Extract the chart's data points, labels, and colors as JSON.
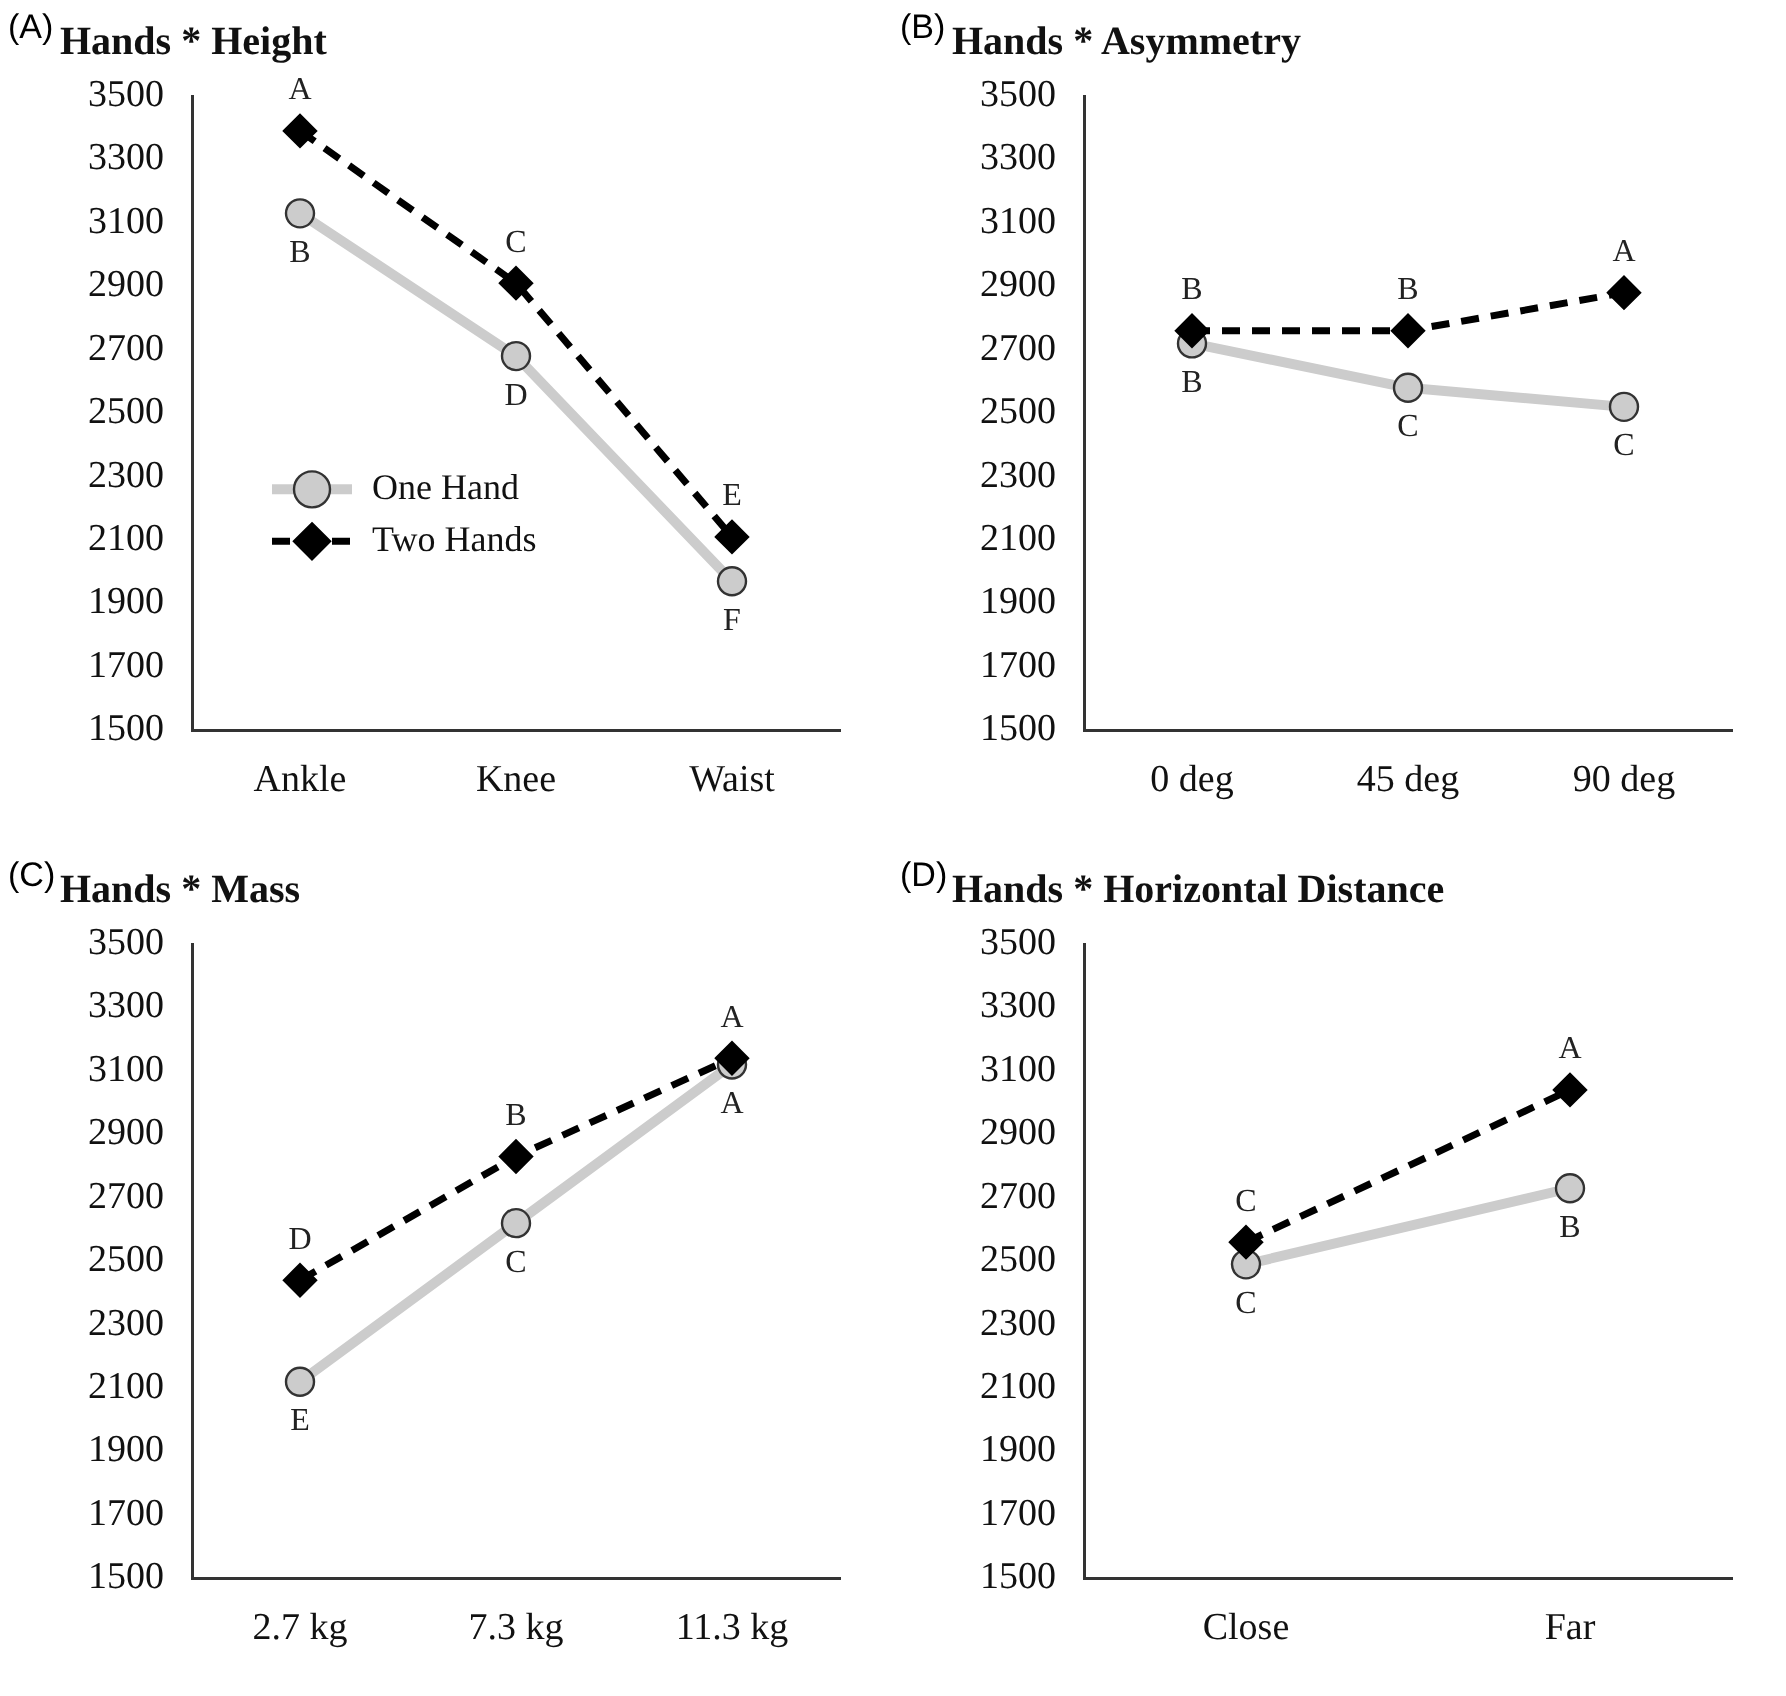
{
  "chart_data": [
    {
      "type": "line",
      "title": "Hands * Height",
      "categories": [
        "Ankle",
        "Knee",
        "Waist"
      ],
      "ylim": [
        1500,
        3500
      ],
      "yticks": [
        1500,
        1700,
        1900,
        2100,
        2300,
        2500,
        2700,
        2900,
        3100,
        3300,
        3500
      ],
      "grid": false,
      "legend": "bottom left",
      "series": [
        {
          "name": "One Hand",
          "color": "#cccccc",
          "marker": "circle",
          "line_style": "solid",
          "values": [
            3130,
            2680,
            1970
          ]
        },
        {
          "name": "Two Hands",
          "color": "#000000",
          "marker": "diamond",
          "line_style": "dashed",
          "values": [
            3390,
            2910,
            2110
          ]
        }
      ],
      "annotations": [
        "(A)",
        {
          "text": "A",
          "x": "Ankle",
          "y": 3390
        },
        {
          "text": "C",
          "x": "Knee",
          "y": 2910
        },
        {
          "text": "E",
          "x": "Waist",
          "y": 2110
        },
        {
          "text": "B",
          "x": "Ankle",
          "y": 3130
        },
        {
          "text": "D",
          "x": "Knee",
          "y": 2680
        },
        {
          "text": "F",
          "x": "Waist",
          "y": 1970
        }
      ]
    },
    {
      "type": "line",
      "title": "Hands * Asymmetry",
      "categories": [
        "0 deg",
        "45 deg",
        "90 deg"
      ],
      "ylim": [
        1500,
        3500
      ],
      "yticks": [
        1500,
        1700,
        1900,
        2100,
        2300,
        2500,
        2700,
        2900,
        3100,
        3300,
        3500
      ],
      "grid": false,
      "legend": false,
      "series": [
        {
          "color": "#cccccc",
          "marker": "circle",
          "line_style": "solid",
          "values": [
            2720,
            2580,
            2520
          ]
        },
        {
          "color": "#000000",
          "marker": "diamond",
          "line_style": "dashed",
          "values": [
            2760,
            2760,
            2880
          ]
        }
      ],
      "annotations": [
        "(B)",
        {
          "text": "B",
          "x": "0 deg",
          "y": 2760
        },
        {
          "text": "B",
          "x": "45 deg",
          "y": 2760
        },
        {
          "text": "A",
          "x": "90 deg",
          "y": 2880
        },
        {
          "text": "B",
          "x": "0 deg",
          "y": 2720
        },
        {
          "text": "C",
          "x": "45 deg",
          "y": 2580
        },
        {
          "text": "C",
          "x": "90 deg",
          "y": 2520
        }
      ]
    },
    {
      "type": "line",
      "title": "Hands * Mass",
      "categories": [
        "2.7 kg",
        "7.3 kg",
        "11.3 kg"
      ],
      "ylim": [
        1500,
        3500
      ],
      "yticks": [
        1500,
        1700,
        1900,
        2100,
        2300,
        2500,
        2700,
        2900,
        3100,
        3300,
        3500
      ],
      "grid": false,
      "legend": false,
      "series": [
        {
          "color": "#cccccc",
          "marker": "circle",
          "line_style": "solid",
          "values": [
            2120,
            2620,
            3120
          ]
        },
        {
          "color": "#000000",
          "marker": "diamond",
          "line_style": "dashed",
          "values": [
            2440,
            2830,
            3140
          ]
        }
      ],
      "annotations": [
        "(C)",
        {
          "text": "D",
          "x": "2.7 kg",
          "y": 2440
        },
        {
          "text": "B",
          "x": "7.3 kg",
          "y": 2830
        },
        {
          "text": "A",
          "x": "11.3 kg",
          "y": 3140
        },
        {
          "text": "E",
          "x": "2.7 kg",
          "y": 2120
        },
        {
          "text": "C",
          "x": "7.3 kg",
          "y": 2620
        },
        {
          "text": "A",
          "x": "11.3 kg",
          "y": 3120
        }
      ]
    },
    {
      "type": "line",
      "title": "Hands * Horizontal Distance",
      "categories": [
        "Close",
        "Far"
      ],
      "ylim": [
        1500,
        3500
      ],
      "yticks": [
        1500,
        1700,
        1900,
        2100,
        2300,
        2500,
        2700,
        2900,
        3100,
        3300,
        3500
      ],
      "grid": false,
      "legend": false,
      "series": [
        {
          "color": "#cccccc",
          "marker": "circle",
          "line_style": "solid",
          "values": [
            2490,
            2730
          ]
        },
        {
          "color": "#000000",
          "marker": "diamond",
          "line_style": "dashed",
          "values": [
            2560,
            3040
          ]
        }
      ],
      "annotations": [
        "(D)",
        {
          "text": "C",
          "x": "Close",
          "y": 2560
        },
        {
          "text": "A",
          "x": "Far",
          "y": 3040
        },
        {
          "text": "C",
          "x": "Close",
          "y": 2490
        },
        {
          "text": "B",
          "x": "Far",
          "y": 2730
        }
      ]
    }
  ]
}
